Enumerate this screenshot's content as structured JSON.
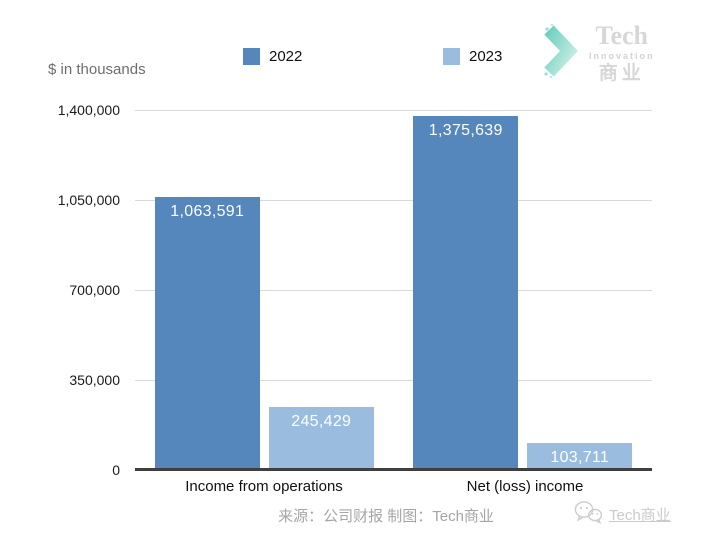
{
  "header": {
    "units_label": "$ in thousands"
  },
  "logo": {
    "line1": "Tech",
    "line2": "Innovation",
    "line3": "商业"
  },
  "chart_data": {
    "type": "bar",
    "categories": [
      "Income from operations",
      "Net (loss) income"
    ],
    "series": [
      {
        "name": "2022",
        "color": "#5586bc",
        "values": [
          1063591,
          1375639
        ]
      },
      {
        "name": "2023",
        "color": "#99bcdf",
        "values": [
          245429,
          103711
        ]
      }
    ],
    "value_labels": [
      [
        "1,063,591",
        "1,375,639"
      ],
      [
        "245,429",
        "103,711"
      ]
    ],
    "units": "$ in thousands",
    "ylim": [
      0,
      1400000
    ],
    "yticks": [
      0,
      350000,
      700000,
      1050000,
      1400000
    ],
    "ytick_labels": [
      "0",
      "350,000",
      "700,000",
      "1,050,000",
      "1,400,000"
    ],
    "grid": true,
    "legend_position": "top",
    "colors": {
      "series_2022": "#5586bc",
      "series_2023": "#99bcdf",
      "gridline": "#d9d9d9",
      "axis": "#3f3f3f"
    }
  },
  "footer": {
    "source": "来源：公司财报 制图：Tech商业"
  },
  "watermark": {
    "label": "Tech商业"
  }
}
